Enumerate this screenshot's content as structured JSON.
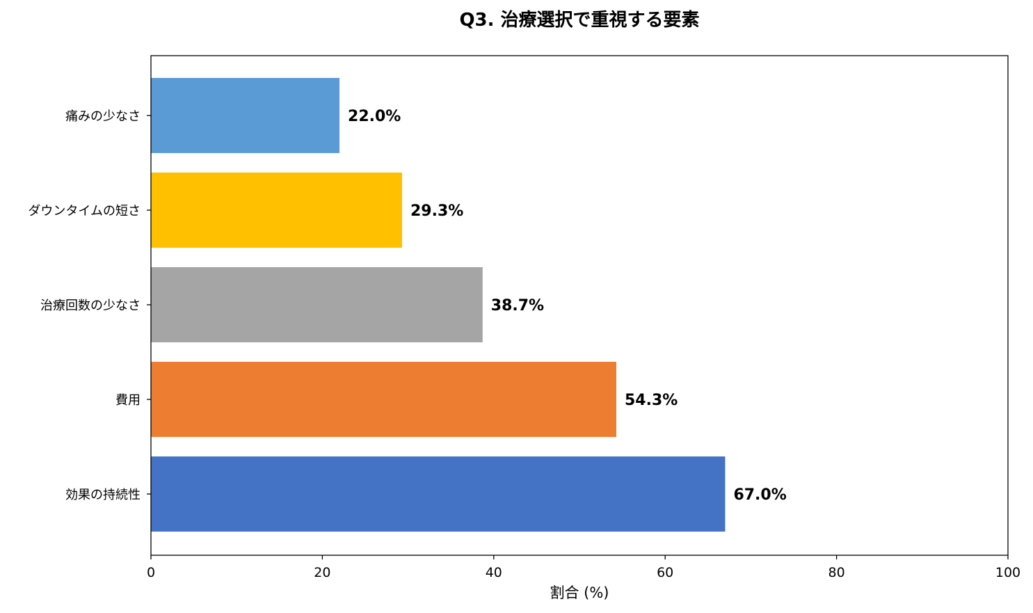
{
  "chart_data": {
    "type": "bar",
    "orientation": "horizontal",
    "title": "Q3. 治療選択で重視する要素",
    "xlabel": "割合 (%)",
    "ylabel": "",
    "xlim": [
      0,
      100
    ],
    "xticks": [
      0,
      20,
      40,
      60,
      80,
      100
    ],
    "grid": false,
    "categories": [
      "痛みの少なさ",
      "ダウンタイムの短さ",
      "治療回数の少なさ",
      "費用",
      "効果の持続性"
    ],
    "values": [
      22.0,
      29.3,
      38.7,
      54.3,
      67.0
    ],
    "value_labels": [
      "22.0%",
      "29.3%",
      "38.7%",
      "54.3%",
      "67.0%"
    ],
    "colors": [
      "#5b9bd5",
      "#ffc000",
      "#a5a5a5",
      "#ed7d31",
      "#4472c4"
    ]
  }
}
